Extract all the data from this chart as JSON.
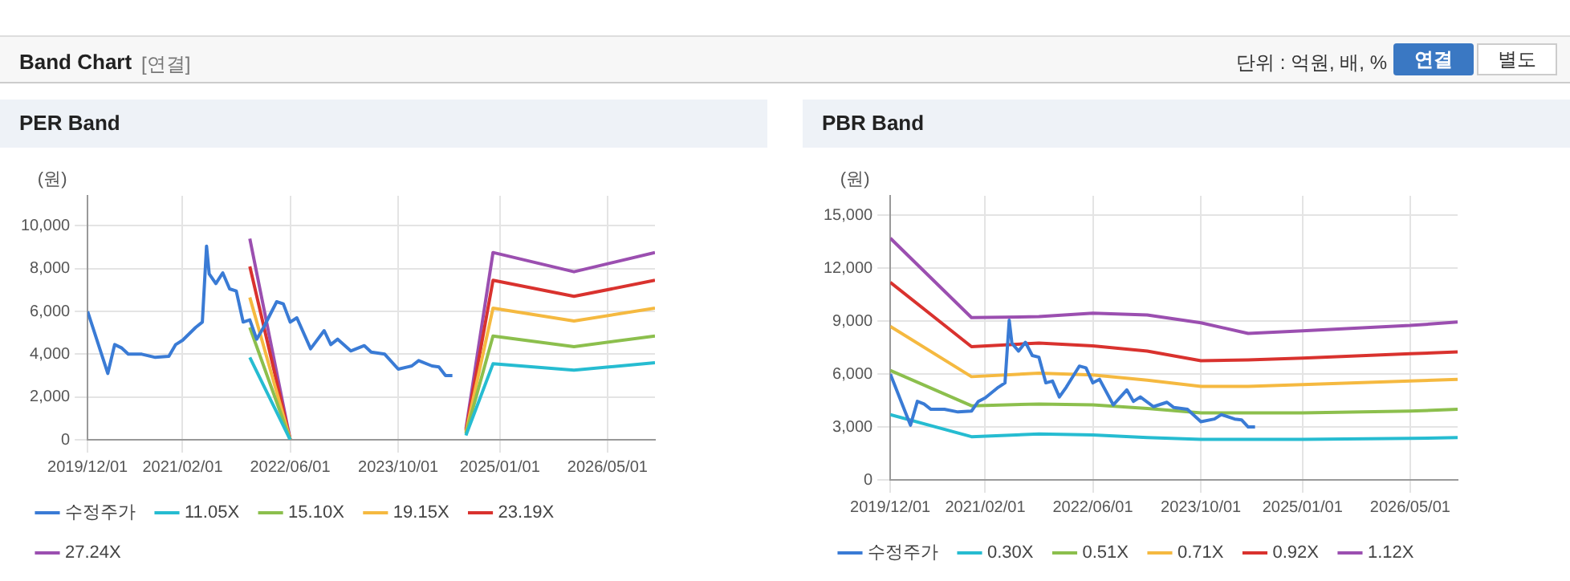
{
  "chart_data": [
    {
      "type": "other",
      "title": "Band Chart",
      "annotations": [
        "[연결]",
        "단위 : 억원, 배, %",
        "연결",
        "별도"
      ]
    },
    {
      "type": "line",
      "title": "PER Band",
      "ylabel": "(원)",
      "grid": true,
      "legend": "bottom",
      "marker": "none",
      "line_style": "solid",
      "xlim": [
        "2019-12-01",
        "2026-12-01"
      ],
      "xticks": [
        {
          "value": "2019-12-01",
          "label": "2019/12/01"
        },
        {
          "value": "2021-02-01",
          "label": "2021/02/01"
        },
        {
          "value": "2022-06-01",
          "label": "2022/06/01"
        },
        {
          "value": "2023-10-01",
          "label": "2023/10/01"
        },
        {
          "value": "2025-01-01",
          "label": "2025/01/01"
        },
        {
          "value": "2026-05-01",
          "label": "2026/05/01"
        }
      ],
      "ylim": [
        0,
        11400
      ],
      "yticks": [
        0,
        {
          "value": 2000,
          "label": "2,000"
        },
        {
          "value": 4000,
          "label": "4,000"
        },
        {
          "value": 6000,
          "label": "6,000"
        },
        {
          "value": 8000,
          "label": "8,000"
        },
        {
          "value": 10000,
          "label": "10,000"
        }
      ],
      "series": [
        {
          "name": "수정주가",
          "color": "#3a7bd5",
          "x": [
            "2019-12",
            "2020-03",
            "2020-04",
            "2020-05",
            "2020-06",
            "2020-08",
            "2020-10",
            "2020-12",
            "2021-01",
            "2021-02",
            "2021-04",
            "2021-05",
            "2021-05-20",
            "2021-06",
            "2021-07",
            "2021-08",
            "2021-09",
            "2021-10",
            "2021-11",
            "2021-12",
            "2022-01",
            "2022-02",
            "2022-04",
            "2022-05",
            "2022-06",
            "2022-07",
            "2022-09",
            "2022-11",
            "2022-12",
            "2023-01",
            "2023-03",
            "2023-05",
            "2023-06",
            "2023-08",
            "2023-10",
            "2023-12",
            "2024-01",
            "2024-03",
            "2024-04",
            "2024-05",
            "2024-06"
          ],
          "values": [
            6000,
            3100,
            4450,
            4300,
            4000,
            4000,
            3850,
            3900,
            4450,
            4650,
            5250,
            5500,
            9050,
            7750,
            7300,
            7800,
            7050,
            6950,
            5500,
            5600,
            4700,
            5250,
            6450,
            6350,
            5500,
            5700,
            4250,
            5100,
            4450,
            4700,
            4150,
            4400,
            4100,
            4000,
            3300,
            3450,
            3700,
            3450,
            3400,
            3000,
            3000
          ]
        },
        {
          "name": "11.05X",
          "color": "#26bcd1",
          "x": [
            "2021-12",
            "2022-06",
            "2023-07",
            "2024-08",
            "2024-12",
            "2025-12",
            "2026-12"
          ],
          "values": [
            3850,
            0,
            null,
            200,
            3550,
            3250,
            3600
          ]
        },
        {
          "name": "15.10X",
          "color": "#8cbf4d",
          "x": [
            "2021-12",
            "2022-06",
            "2023-07",
            "2024-08",
            "2024-12",
            "2025-12",
            "2026-12"
          ],
          "values": [
            5250,
            0,
            null,
            280,
            4850,
            4350,
            4850
          ]
        },
        {
          "name": "19.15X",
          "color": "#f5b940",
          "x": [
            "2021-12",
            "2022-06",
            "2023-07",
            "2024-08",
            "2024-12",
            "2025-12",
            "2026-12"
          ],
          "values": [
            6650,
            0,
            null,
            350,
            6150,
            5550,
            6150
          ]
        },
        {
          "name": "23.19X",
          "color": "#d9322e",
          "x": [
            "2021-12",
            "2022-06",
            "2023-07",
            "2024-08",
            "2024-12",
            "2025-12",
            "2026-12"
          ],
          "values": [
            8100,
            0,
            null,
            430,
            7450,
            6700,
            7450
          ]
        },
        {
          "name": "27.24X",
          "color": "#9b4fb0",
          "x": [
            "2021-12",
            "2022-06",
            "2023-07",
            "2024-08",
            "2024-12",
            "2025-12",
            "2026-12"
          ],
          "values": [
            9400,
            0,
            null,
            500,
            8750,
            7850,
            8750
          ]
        }
      ]
    },
    {
      "type": "line",
      "title": "PBR Band",
      "ylabel": "(원)",
      "grid": true,
      "legend": "bottom",
      "marker": "none",
      "line_style": "solid",
      "xlim": [
        "2019-12-01",
        "2026-12-01"
      ],
      "xticks": [
        {
          "value": "2019-12-01",
          "label": "2019/12/01"
        },
        {
          "value": "2021-02-01",
          "label": "2021/02/01"
        },
        {
          "value": "2022-06-01",
          "label": "2022/06/01"
        },
        {
          "value": "2023-10-01",
          "label": "2023/10/01"
        },
        {
          "value": "2025-01-01",
          "label": "2025/01/01"
        },
        {
          "value": "2026-05-01",
          "label": "2026/05/01"
        }
      ],
      "ylim": [
        0,
        16100
      ],
      "yticks": [
        0,
        {
          "value": 3000,
          "label": "3,000"
        },
        {
          "value": 6000,
          "label": "6,000"
        },
        {
          "value": 9000,
          "label": "9,000"
        },
        {
          "value": 12000,
          "label": "12,000"
        },
        {
          "value": 15000,
          "label": "15,000"
        }
      ],
      "series": [
        {
          "name": "수정주가",
          "color": "#3a7bd5",
          "x": [
            "2019-12",
            "2020-03",
            "2020-04",
            "2020-05",
            "2020-06",
            "2020-08",
            "2020-10",
            "2020-12",
            "2021-01",
            "2021-02",
            "2021-04",
            "2021-05",
            "2021-05-20",
            "2021-06",
            "2021-07",
            "2021-08",
            "2021-09",
            "2021-10",
            "2021-11",
            "2021-12",
            "2022-01",
            "2022-02",
            "2022-04",
            "2022-05",
            "2022-06",
            "2022-07",
            "2022-09",
            "2022-11",
            "2022-12",
            "2023-01",
            "2023-03",
            "2023-05",
            "2023-06",
            "2023-08",
            "2023-10",
            "2023-12",
            "2024-01",
            "2024-03",
            "2024-04",
            "2024-05",
            "2024-06"
          ],
          "values": [
            6000,
            3100,
            4450,
            4300,
            4000,
            4000,
            3850,
            3900,
            4450,
            4650,
            5250,
            5500,
            9050,
            7750,
            7300,
            7800,
            7050,
            6950,
            5500,
            5600,
            4700,
            5250,
            6450,
            6350,
            5500,
            5700,
            4250,
            5100,
            4450,
            4700,
            4150,
            4400,
            4100,
            4000,
            3300,
            3450,
            3700,
            3450,
            3400,
            3000,
            3000
          ]
        },
        {
          "name": "0.30X",
          "color": "#26bcd1",
          "x": [
            "2019-12",
            "2020-12",
            "2021-10",
            "2022-06",
            "2023-02",
            "2023-10",
            "2024-05",
            "2025-01",
            "2026-05",
            "2026-12"
          ],
          "values": [
            3700,
            2450,
            2600,
            2550,
            2400,
            2300,
            2300,
            2300,
            2350,
            2400
          ]
        },
        {
          "name": "0.51X",
          "color": "#8cbf4d",
          "x": [
            "2019-12",
            "2020-12",
            "2021-10",
            "2022-06",
            "2023-02",
            "2023-10",
            "2024-05",
            "2025-01",
            "2026-05",
            "2026-12"
          ],
          "values": [
            6200,
            4200,
            4300,
            4250,
            4050,
            3800,
            3800,
            3800,
            3900,
            4000
          ]
        },
        {
          "name": "0.71X",
          "color": "#f5b940",
          "x": [
            "2019-12",
            "2020-12",
            "2021-10",
            "2022-06",
            "2023-02",
            "2023-10",
            "2024-05",
            "2025-01",
            "2026-05",
            "2026-12"
          ],
          "values": [
            8700,
            5850,
            6050,
            5950,
            5650,
            5300,
            5300,
            5400,
            5600,
            5700
          ]
        },
        {
          "name": "0.92X",
          "color": "#d9322e",
          "x": [
            "2019-12",
            "2020-12",
            "2021-10",
            "2022-06",
            "2023-02",
            "2023-10",
            "2024-05",
            "2025-01",
            "2026-05",
            "2026-12"
          ],
          "values": [
            11200,
            7550,
            7750,
            7600,
            7300,
            6750,
            6800,
            6900,
            7150,
            7250
          ]
        },
        {
          "name": "1.12X",
          "color": "#9b4fb0",
          "x": [
            "2019-12",
            "2020-12",
            "2021-10",
            "2022-06",
            "2023-02",
            "2023-10",
            "2024-05",
            "2025-01",
            "2026-05",
            "2026-12"
          ],
          "values": [
            13700,
            9200,
            9250,
            9450,
            9350,
            8900,
            8300,
            8450,
            8750,
            8950
          ]
        }
      ]
    }
  ]
}
